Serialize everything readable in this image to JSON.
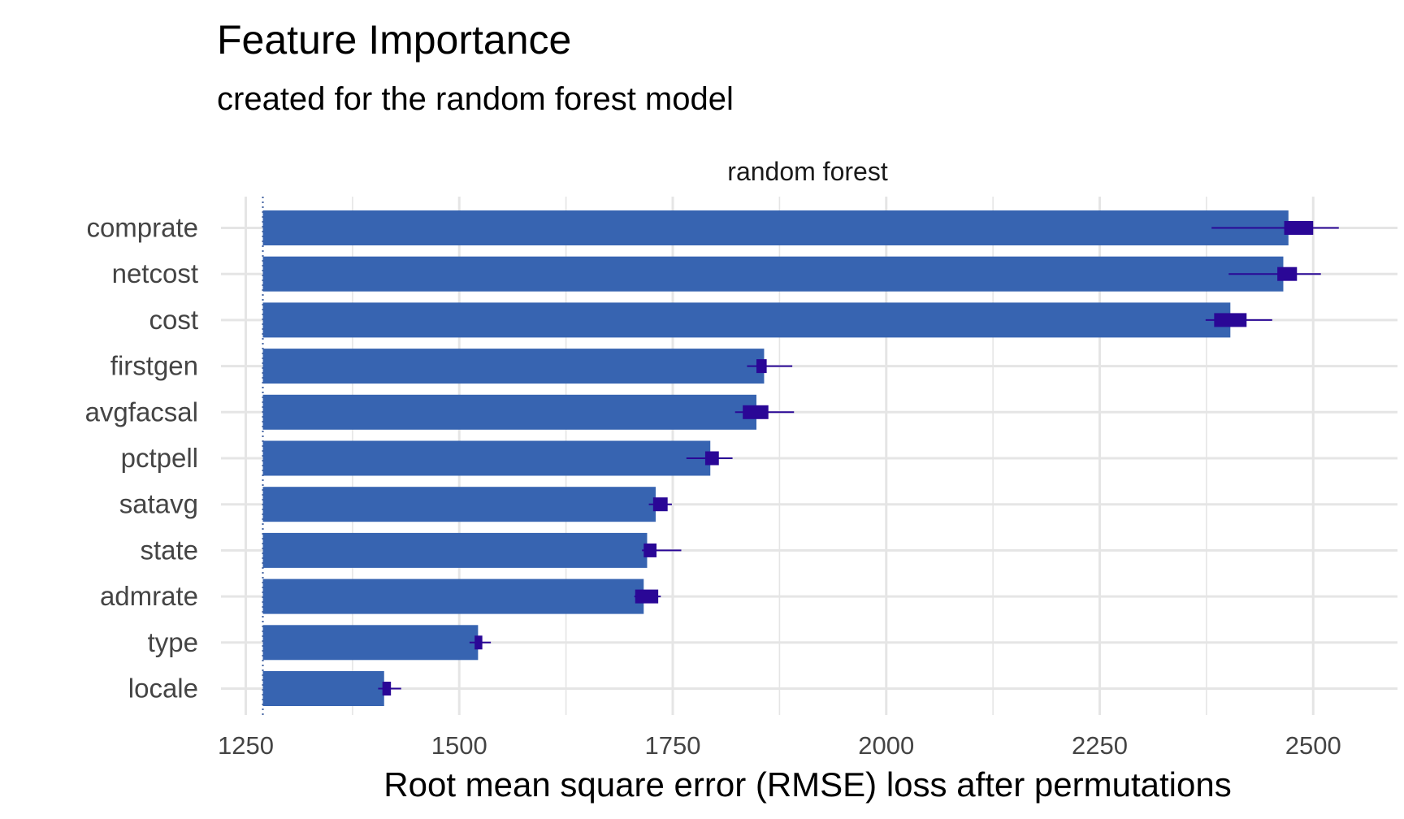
{
  "chart_data": {
    "type": "bar",
    "title": "Feature Importance",
    "subtitle": "created for the random forest model",
    "panel_label": "random forest",
    "xlabel": "Root mean square error (RMSE) loss after permutations",
    "xlim": [
      1200,
      2600
    ],
    "x_ticks": [
      1250,
      1500,
      1750,
      2000,
      2250,
      2500
    ],
    "baseline": 1270,
    "orientation": "horizontal",
    "grid": true,
    "colors": {
      "bar": "#3764b1",
      "whisker": "#2a0796",
      "grid": "#e5e5e5",
      "baseline": "#3f5f9f"
    },
    "categories": [
      "comprate",
      "netcost",
      "cost",
      "firstgen",
      "avgfacsal",
      "pctpell",
      "satavg",
      "state",
      "admrate",
      "type",
      "locale"
    ],
    "values": [
      2471,
      2465,
      2403,
      1857,
      1848,
      1794,
      1730,
      1720,
      1716,
      1522,
      1412
    ],
    "whiskers": [
      {
        "min": 2381,
        "q1": 2466,
        "q3": 2500,
        "max": 2530
      },
      {
        "min": 2401,
        "q1": 2458,
        "q3": 2481,
        "max": 2509
      },
      {
        "min": 2374,
        "q1": 2384,
        "q3": 2422,
        "max": 2452
      },
      {
        "min": 1837,
        "q1": 1848,
        "q3": 1860,
        "max": 1890
      },
      {
        "min": 1823,
        "q1": 1832,
        "q3": 1862,
        "max": 1892
      },
      {
        "min": 1766,
        "q1": 1788,
        "q3": 1804,
        "max": 1820
      },
      {
        "min": 1722,
        "q1": 1727,
        "q3": 1744,
        "max": 1749
      },
      {
        "min": 1714,
        "q1": 1716,
        "q3": 1731,
        "max": 1760
      },
      {
        "min": 1705,
        "q1": 1706,
        "q3": 1733,
        "max": 1736
      },
      {
        "min": 1512,
        "q1": 1518,
        "q3": 1527,
        "max": 1537
      },
      {
        "min": 1405,
        "q1": 1410,
        "q3": 1420,
        "max": 1432
      }
    ]
  }
}
